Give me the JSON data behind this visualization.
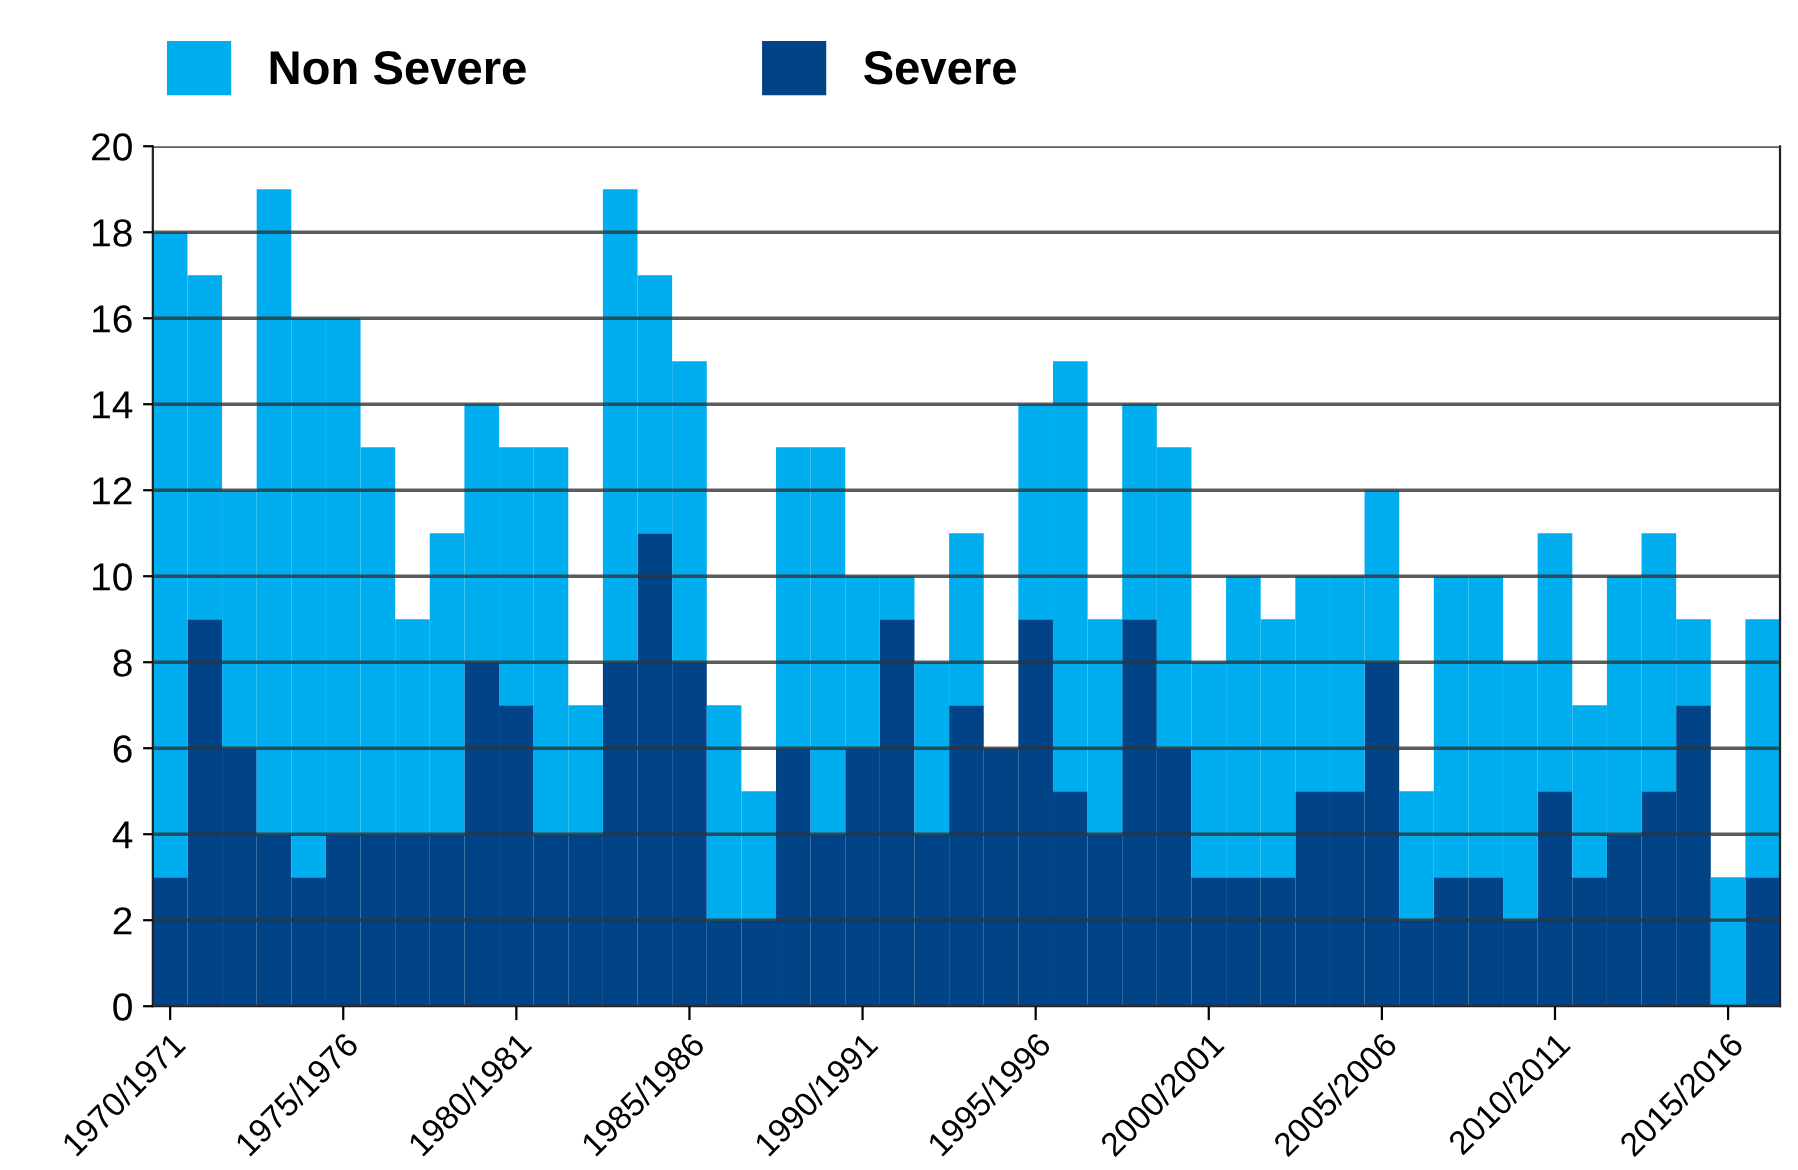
{
  "chart_data": {
    "type": "bar",
    "stacked": true,
    "categories": [
      "1970/1971",
      null,
      null,
      null,
      null,
      "1975/1976",
      null,
      null,
      null,
      null,
      "1980/1981",
      null,
      null,
      null,
      null,
      "1985/1986",
      null,
      null,
      null,
      null,
      "1990/1991",
      null,
      null,
      null,
      null,
      "1995/1996",
      null,
      null,
      null,
      null,
      "2000/2001",
      null,
      null,
      null,
      null,
      "2005/2006",
      null,
      null,
      null,
      null,
      "2010/2011",
      null,
      null,
      null,
      null,
      "2015/2016",
      null
    ],
    "series": [
      {
        "name": "Severe",
        "color": "#004386",
        "values": [
          3,
          9,
          6,
          4,
          3,
          4,
          4,
          4,
          4,
          8,
          7,
          4,
          4,
          8,
          11,
          8,
          2,
          2,
          6,
          4,
          6,
          9,
          4,
          7,
          6,
          9,
          5,
          4,
          9,
          6,
          3,
          3,
          3,
          5,
          5,
          8,
          2,
          3,
          3,
          2,
          5,
          3,
          4,
          5,
          7,
          0,
          3
        ]
      },
      {
        "name": "Non Severe",
        "color": "#00aeef",
        "values": [
          15,
          8,
          6,
          15,
          13,
          12,
          9,
          5,
          7,
          6,
          6,
          9,
          3,
          11,
          6,
          7,
          5,
          3,
          7,
          9,
          4,
          1,
          4,
          4,
          0,
          5,
          10,
          5,
          5,
          7,
          5,
          7,
          6,
          5,
          5,
          4,
          3,
          7,
          7,
          6,
          6,
          4,
          6,
          6,
          2,
          3,
          6
        ]
      }
    ],
    "ylim": [
      0,
      20
    ],
    "yticks": [
      0,
      2,
      4,
      6,
      8,
      10,
      12,
      14,
      16,
      18,
      20
    ],
    "grid": "y",
    "legend": "top left"
  }
}
